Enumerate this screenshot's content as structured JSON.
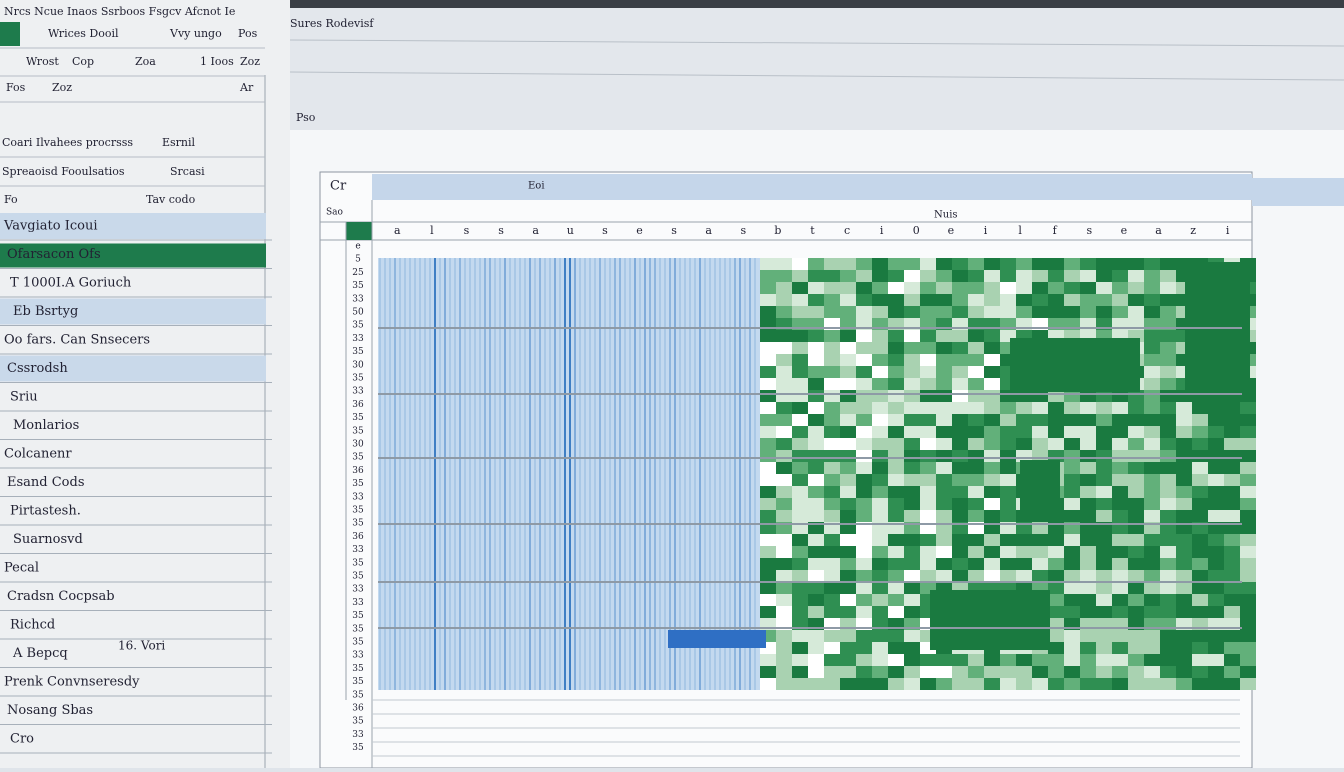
{
  "window": {
    "menu": "Nrcs Ncue Inaos Ssrboos Fsgcv Afcnot Ie",
    "tab": "Sures Rodevisf",
    "status": "Pso"
  },
  "toolbar": {
    "rows": [
      [
        "Wrices Dooil",
        "Vvy ungo",
        "Pos"
      ],
      [
        "Wrost",
        "Cop",
        "Zoa",
        "1 Ioos",
        "Zoz"
      ],
      [
        "Fos",
        "Zoz",
        "Ar"
      ],
      [
        "Coari Ilvahees procrsss",
        "Esrnil"
      ],
      [
        "Spreaoisd Fooulsatios",
        "Srcasi"
      ],
      [
        "Fo",
        "Tav codo"
      ]
    ]
  },
  "sidebar": {
    "items": [
      "Vavgiato Icoui",
      "Ofarsacon Ofs",
      "T 1000I.A Goriuch",
      "Eb Bsrtyg",
      "Oo fars. Can Snsecers",
      "Cssrodsh",
      "Sriu",
      "Monlarios",
      "Colcanenr",
      "Esand Cods",
      "Pirtastesh.",
      "Suarnosvd",
      "Pecal",
      "Cradsn Cocpsab",
      "Richcd",
      "A Bepcq",
      "Prenk Convnseresdy",
      "Nosang Sbas",
      "Cro"
    ],
    "note": "16. Vori"
  },
  "sheet": {
    "cell_ref": "Cr",
    "formula": "Eoi",
    "name_box": "Sao",
    "column_title": "Nuis",
    "columns": [
      "a",
      "l",
      "s",
      "s",
      "a",
      "u",
      "s",
      "e",
      "s",
      "a",
      "s",
      "b",
      "t",
      "c",
      "i",
      "0",
      "e",
      "i",
      "l",
      "f",
      "s",
      "e",
      "a",
      "z",
      "i"
    ],
    "rows": [
      "e",
      "5",
      "25",
      "35",
      "33",
      "50",
      "35",
      "33",
      "35",
      "30",
      "35",
      "33",
      "36",
      "35",
      "35",
      "30",
      "35",
      "36",
      "35",
      "33",
      "35",
      "35",
      "36",
      "33",
      "35",
      "35",
      "33",
      "33",
      "35",
      "35",
      "35",
      "33",
      "35",
      "35",
      "35",
      "36",
      "35",
      "33",
      "35"
    ]
  }
}
